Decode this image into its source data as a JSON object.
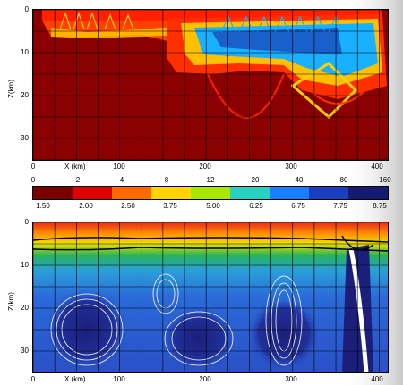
{
  "chart_data": [
    {
      "type": "heatmap",
      "xlabel": "X (km)",
      "ylabel": "Z(km)",
      "xlim": [
        0,
        410
      ],
      "ylim": [
        35,
        0
      ],
      "x_ticks": [
        0,
        100,
        200,
        300,
        400
      ],
      "y_ticks": [
        0,
        10,
        20,
        30
      ],
      "grid": true,
      "colors": {
        "background": "#8b0000",
        "hot": "#ff2000",
        "warm": "#ffd000",
        "cool": "#19b0ff",
        "deep": "#1a3fb5"
      }
    },
    {
      "type": "heatmap",
      "xlabel": "X (km)",
      "ylabel": "Z(km)",
      "xlim": [
        0,
        410
      ],
      "ylim": [
        35,
        0
      ],
      "x_ticks": [
        0,
        100,
        200,
        300,
        400
      ],
      "y_ticks": [
        0,
        10,
        20,
        30
      ],
      "grid": true,
      "contours": "white",
      "colors": {
        "surface": "#e52a1a",
        "upper": "#f0e000",
        "middle": "#27b35a",
        "lower": "#2a6ad8",
        "deep": "#1b1f7a"
      }
    }
  ],
  "colorbar": {
    "top_labels": [
      "0",
      "2",
      "4",
      "8",
      "12",
      "20",
      "40",
      "80",
      "160"
    ],
    "bottom_labels": [
      "1.50",
      "2.00",
      "2.50",
      "3.75",
      "5.00",
      "6.25",
      "6.75",
      "7.75",
      "8.75"
    ],
    "colors": [
      "#7a0000",
      "#e00000",
      "#ff6a00",
      "#ffd400",
      "#a8e800",
      "#2ad0c0",
      "#1a7fff",
      "#1c3ec0",
      "#161a70"
    ]
  }
}
